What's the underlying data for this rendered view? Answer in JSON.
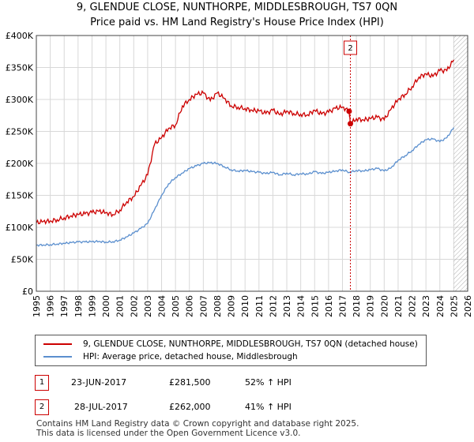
{
  "header": {
    "title": "9, GLENDUE CLOSE, NUNTHORPE, MIDDLESBROUGH, TS7 0QN",
    "subtitle": "Price paid vs. HM Land Registry's House Price Index (HPI)"
  },
  "colors": {
    "property_line": "#cc0000",
    "hpi_line": "#5b8fce",
    "grid": "#d8d8d8",
    "plot_bg": "#ffffff",
    "sale_marker_line": "#cc0000",
    "forecast_hatch": "#999999"
  },
  "chart_data": {
    "type": "line",
    "title": "9, GLENDUE CLOSE, NUNTHORPE, MIDDLESBROUGH, TS7 0QN",
    "subtitle": "Price paid vs. HM Land Registry's House Price Index (HPI)",
    "xlabel": "",
    "ylabel": "",
    "xlim": [
      1995,
      2026
    ],
    "ylim": [
      0,
      400000
    ],
    "grid": true,
    "x_ticks": [
      1995,
      1996,
      1997,
      1998,
      1999,
      2000,
      2001,
      2002,
      2003,
      2004,
      2005,
      2006,
      2007,
      2008,
      2009,
      2010,
      2011,
      2012,
      2013,
      2014,
      2015,
      2016,
      2017,
      2018,
      2019,
      2020,
      2021,
      2022,
      2023,
      2024,
      2025,
      2026
    ],
    "y_ticks": [
      0,
      50000,
      100000,
      150000,
      200000,
      250000,
      300000,
      350000,
      400000
    ],
    "y_tick_labels": [
      "£0",
      "£50K",
      "£100K",
      "£150K",
      "£200K",
      "£250K",
      "£300K",
      "£350K",
      "£400K"
    ],
    "series": [
      {
        "name": "9, GLENDUE CLOSE, NUNTHORPE, MIDDLESBROUGH, TS7 0QN (detached house)",
        "color": "#cc0000",
        "x": [
          1995.0,
          1995.5,
          1996.0,
          1996.5,
          1997.0,
          1997.5,
          1998.0,
          1998.5,
          1999.0,
          1999.5,
          2000.0,
          2000.5,
          2001.0,
          2001.5,
          2002.0,
          2002.5,
          2003.0,
          2003.5,
          2004.0,
          2004.5,
          2005.0,
          2005.5,
          2006.0,
          2006.5,
          2007.0,
          2007.5,
          2008.0,
          2008.5,
          2009.0,
          2009.5,
          2010.0,
          2010.5,
          2011.0,
          2011.5,
          2012.0,
          2012.5,
          2013.0,
          2013.5,
          2014.0,
          2014.5,
          2015.0,
          2015.5,
          2016.0,
          2016.5,
          2017.0,
          2017.48,
          2017.57,
          2018.0,
          2018.5,
          2019.0,
          2019.5,
          2020.0,
          2020.5,
          2021.0,
          2021.5,
          2022.0,
          2022.5,
          2023.0,
          2023.5,
          2024.0,
          2024.5,
          2025.0
        ],
        "y": [
          107000,
          109000,
          110000,
          112000,
          115000,
          118000,
          120000,
          121000,
          123000,
          125000,
          123000,
          120000,
          127000,
          140000,
          148000,
          165000,
          182000,
          230000,
          240000,
          255000,
          260000,
          290000,
          300000,
          308000,
          310000,
          298000,
          310000,
          302000,
          290000,
          288000,
          286000,
          283000,
          282000,
          278000,
          283000,
          276000,
          282000,
          278000,
          277000,
          276000,
          283000,
          277000,
          280000,
          286000,
          288000,
          281500,
          262000,
          270000,
          268000,
          270000,
          272000,
          268000,
          285000,
          300000,
          308000,
          320000,
          335000,
          340000,
          336000,
          345000,
          345000,
          362000
        ]
      },
      {
        "name": "HPI: Average price, detached house, Middlesbrough",
        "color": "#5b8fce",
        "x": [
          1995.0,
          1995.5,
          1996.0,
          1996.5,
          1997.0,
          1997.5,
          1998.0,
          1998.5,
          1999.0,
          1999.5,
          2000.0,
          2000.5,
          2001.0,
          2001.5,
          2002.0,
          2002.5,
          2003.0,
          2003.5,
          2004.0,
          2004.5,
          2005.0,
          2005.5,
          2006.0,
          2006.5,
          2007.0,
          2007.5,
          2008.0,
          2008.5,
          2009.0,
          2009.5,
          2010.0,
          2010.5,
          2011.0,
          2011.5,
          2012.0,
          2012.5,
          2013.0,
          2013.5,
          2014.0,
          2014.5,
          2015.0,
          2015.5,
          2016.0,
          2016.5,
          2017.0,
          2017.5,
          2018.0,
          2018.5,
          2019.0,
          2019.5,
          2020.0,
          2020.5,
          2021.0,
          2021.5,
          2022.0,
          2022.5,
          2023.0,
          2023.5,
          2024.0,
          2024.5,
          2025.0
        ],
        "y": [
          72000,
          72500,
          73000,
          74000,
          75000,
          76000,
          77000,
          77000,
          77500,
          78000,
          77000,
          77500,
          80000,
          85000,
          91000,
          98000,
          106000,
          128000,
          150000,
          168000,
          178000,
          185000,
          192000,
          196000,
          200000,
          201000,
          200000,
          195000,
          190000,
          188000,
          189000,
          187000,
          186000,
          184000,
          186000,
          182000,
          185000,
          182000,
          184000,
          183000,
          187000,
          184000,
          186000,
          188000,
          190000,
          186000,
          189000,
          188000,
          190000,
          192000,
          188000,
          193000,
          205000,
          212000,
          220000,
          230000,
          237000,
          238000,
          234000,
          240000,
          256000
        ]
      }
    ],
    "annotations": [
      {
        "label": "1",
        "x": 2017.48,
        "y": 281500
      },
      {
        "label": "2",
        "x": 2017.57,
        "y": 262000
      }
    ],
    "forecast_start": 2025.0,
    "legend_position": "below"
  },
  "legend": {
    "items": [
      {
        "label": "9, GLENDUE CLOSE, NUNTHORPE, MIDDLESBROUGH, TS7 0QN (detached house)"
      },
      {
        "label": "HPI: Average price, detached house, Middlesbrough"
      }
    ]
  },
  "transactions": [
    {
      "num": "1",
      "date": "23-JUN-2017",
      "price": "£281,500",
      "hpi": "52% ↑ HPI"
    },
    {
      "num": "2",
      "date": "28-JUL-2017",
      "price": "£262,000",
      "hpi": "41% ↑ HPI"
    }
  ],
  "footer": {
    "line1": "Contains HM Land Registry data © Crown copyright and database right 2025.",
    "line2": "This data is licensed under the Open Government Licence v3.0."
  }
}
